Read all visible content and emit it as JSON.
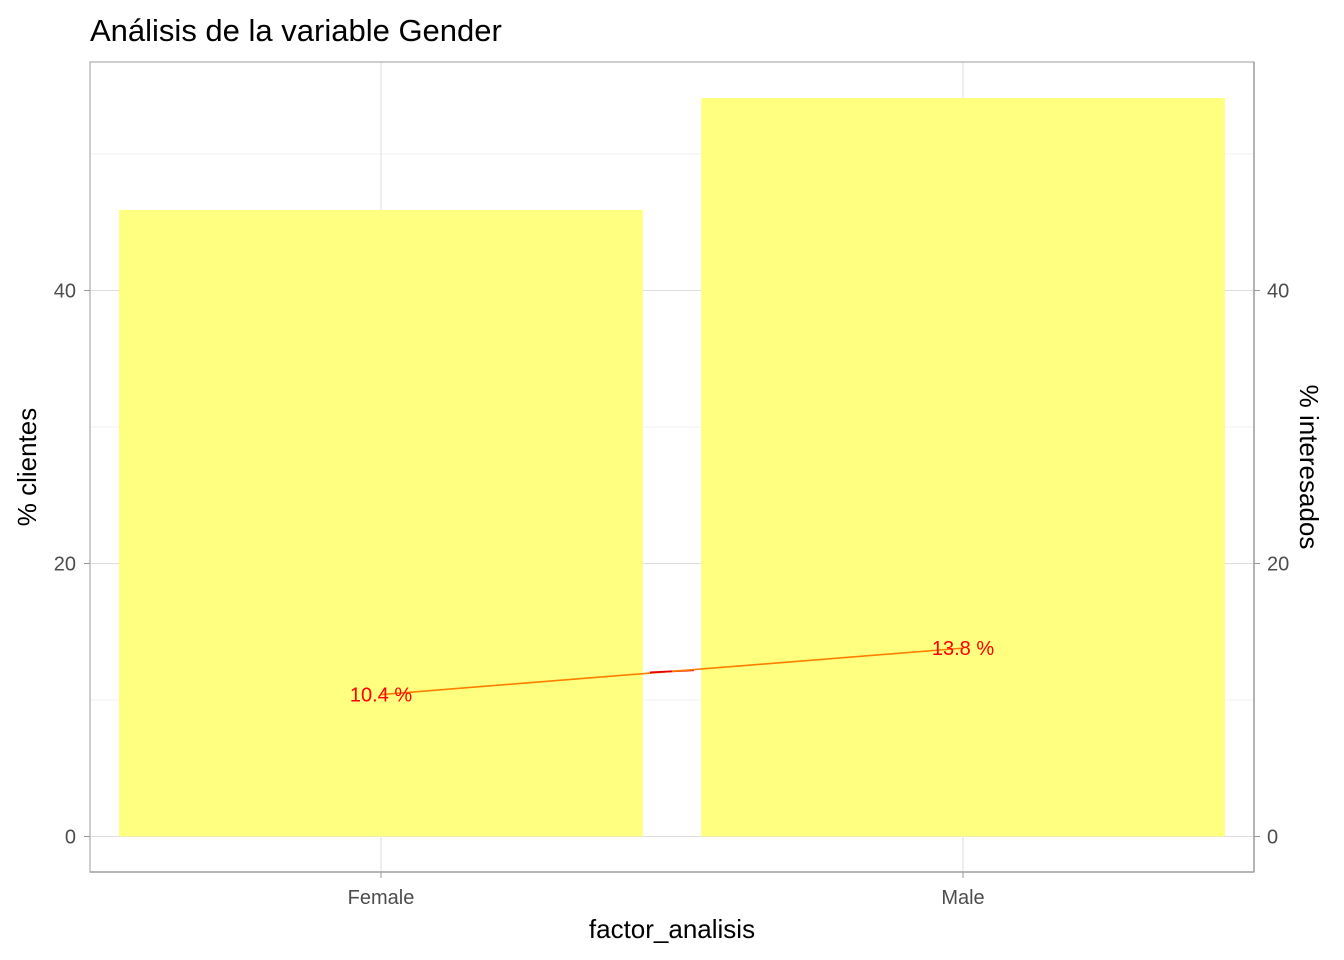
{
  "chart_data": {
    "type": "bar",
    "title": "Análisis de la variable Gender",
    "xlabel": "factor_analisis",
    "ylabel": "% clientes",
    "y2label": "% interesados",
    "categories": [
      "Female",
      "Male"
    ],
    "series": [
      {
        "type": "bar",
        "values": [
          45.9,
          54.1
        ],
        "color": "#ffff80"
      },
      {
        "type": "line",
        "values": [
          10.4,
          13.8
        ],
        "labels": [
          "10.4  %",
          "13.8  %"
        ],
        "color": "#ff0000"
      }
    ],
    "ylim": [
      0,
      56
    ],
    "yticks": [
      0,
      20,
      40
    ],
    "y2ticks": [
      0,
      20,
      40
    ],
    "grid": true,
    "legend": "none"
  }
}
